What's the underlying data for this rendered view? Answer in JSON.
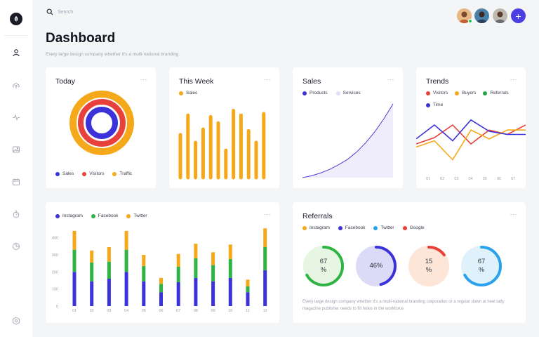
{
  "search": {
    "placeholder": "Search"
  },
  "header": {
    "title": "Dashboard",
    "subtitle": "Every large design company whether it's a multi-national branding"
  },
  "sidebar": {
    "icons": [
      "leaf-logo-icon",
      "user-icon",
      "cloud-upload-icon",
      "activity-icon",
      "image-icon",
      "calendar-icon",
      "timer-icon",
      "pie-chart-icon",
      "settings-icon"
    ]
  },
  "cards": {
    "today": {
      "title": "Today",
      "legend": [
        {
          "label": "Sales",
          "color": "#3b32d9"
        },
        {
          "label": "Visitors",
          "color": "#e8403a"
        },
        {
          "label": "Traffic",
          "color": "#f5a91a"
        }
      ]
    },
    "week": {
      "title": "This Week",
      "legend": [
        {
          "label": "Sales",
          "color": "#f5a91a"
        }
      ]
    },
    "sales": {
      "title": "Sales",
      "legend": [
        {
          "label": "Products",
          "color": "#3b32d9"
        },
        {
          "label": "Services",
          "color": "#e2defa"
        }
      ]
    },
    "trends": {
      "title": "Trends",
      "legend": [
        {
          "label": "Visitors",
          "color": "#e8403a"
        },
        {
          "label": "Buyers",
          "color": "#f5a91a"
        },
        {
          "label": "Referrals",
          "color": "#22a845"
        },
        {
          "label": "Time",
          "color": "#3b32d9"
        }
      ]
    },
    "social": {
      "legend": [
        {
          "label": "Instagram",
          "color": "#3b32d9"
        },
        {
          "label": "Facebook",
          "color": "#2fb344"
        },
        {
          "label": "Twitter",
          "color": "#f5a91a"
        }
      ]
    },
    "referrals": {
      "title": "Referrals",
      "legend": [
        {
          "label": "Instagram",
          "color": "#f5a91a"
        },
        {
          "label": "Facebook",
          "color": "#3b32d9"
        },
        {
          "label": "Twitter",
          "color": "#2aa1ec"
        },
        {
          "label": "Google",
          "color": "#e8403a"
        }
      ],
      "rings": [
        {
          "label": "67\n%",
          "value": 67,
          "fill": "#e6f6e2",
          "stroke": "#2fb344"
        },
        {
          "label": "46%",
          "value": 46,
          "fill": "#dcdbf7",
          "stroke": "#3b32d9"
        },
        {
          "label": "15\n%",
          "value": 15,
          "fill": "#fde5d7",
          "stroke": "#e8403a"
        },
        {
          "label": "67\n%",
          "value": 67,
          "fill": "#dff1fb",
          "stroke": "#2aa1ec"
        }
      ],
      "note": "Every large design company whether it's a multi-national branding corporation or a regular down at heel tatty magazine publisher needs to fill holes in the workforce"
    },
    "dots": "···"
  },
  "chart_data": [
    {
      "type": "bar",
      "chart": "this-week",
      "series": [
        {
          "name": "Sales",
          "values": [
            55,
            80,
            45,
            62,
            78,
            70,
            35,
            86,
            80,
            60,
            45,
            82
          ]
        }
      ],
      "ylim": [
        0,
        100
      ]
    },
    {
      "type": "area",
      "chart": "sales",
      "series": [
        {
          "name": "Products",
          "x": [
            0,
            1,
            2,
            3,
            4,
            5,
            6,
            7,
            8,
            9,
            10
          ],
          "values": [
            0,
            2,
            5,
            9,
            14,
            20,
            28,
            38,
            50,
            64,
            80
          ]
        }
      ],
      "ylim": [
        0,
        80
      ]
    },
    {
      "type": "line",
      "chart": "trends",
      "categories": [
        "01",
        "02",
        "03",
        "04",
        "05",
        "06",
        "07"
      ],
      "series": [
        {
          "name": "Visitors",
          "values": [
            40,
            50,
            70,
            40,
            62,
            55,
            70
          ]
        },
        {
          "name": "Buyers",
          "values": [
            35,
            45,
            15,
            62,
            48,
            62,
            62
          ]
        },
        {
          "name": "Time",
          "values": [
            48,
            70,
            45,
            78,
            60,
            55,
            55
          ]
        }
      ],
      "ylim": [
        0,
        100
      ]
    },
    {
      "type": "bar",
      "chart": "social-stacked",
      "categories": [
        "01",
        "02",
        "03",
        "04",
        "05",
        "06",
        "07",
        "08",
        "09",
        "10",
        "11",
        "12"
      ],
      "y_ticks": [
        0,
        100,
        200,
        300,
        400
      ],
      "ylim": [
        0,
        460
      ],
      "series": [
        {
          "name": "Instagram",
          "values": [
            200,
            145,
            160,
            200,
            145,
            80,
            140,
            165,
            145,
            165,
            80,
            210
          ]
        },
        {
          "name": "Facebook",
          "values": [
            130,
            110,
            100,
            130,
            90,
            50,
            90,
            115,
            95,
            110,
            35,
            135
          ]
        },
        {
          "name": "Twitter",
          "values": [
            110,
            70,
            85,
            110,
            65,
            35,
            75,
            85,
            75,
            85,
            40,
            110
          ]
        }
      ]
    },
    {
      "type": "pie",
      "chart": "today-rings",
      "series": [
        {
          "name": "Traffic",
          "values": [
            100
          ]
        },
        {
          "name": "Visitors",
          "values": [
            100
          ]
        },
        {
          "name": "Sales",
          "values": [
            100
          ]
        }
      ]
    }
  ]
}
